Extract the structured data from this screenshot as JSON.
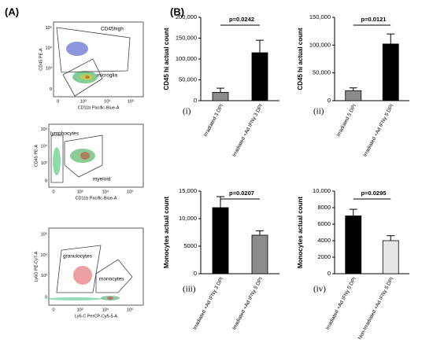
{
  "panel_a": {
    "label": "(A)",
    "plots": [
      {
        "ylabel": "CD45 PE-A",
        "xlabel": "CD11b Pacific-Blue-A",
        "xticks": [
          "0",
          "10³",
          "10⁴",
          "10⁵"
        ],
        "yticks": [
          "10⁵",
          "10⁴",
          "10³",
          "0"
        ],
        "gates": [
          "CD45high",
          "microglia"
        ]
      },
      {
        "ylabel": "CD45 PE-A",
        "xlabel": "CD11b Pacific-Blue-A",
        "xticks": [
          "0",
          "10³",
          "10⁴",
          "10⁵"
        ],
        "yticks": [
          "10⁵",
          "10⁴",
          "10³",
          "0"
        ],
        "gates": [
          "lymphocytes",
          "myeloid"
        ]
      },
      {
        "ylabel": "Ly6G PE-Cy7-A",
        "xlabel": "Ly6-C PerCP-Cy5-5-A",
        "xticks": [
          "0",
          "10³",
          "10⁴",
          "10⁵"
        ],
        "yticks": [
          "10⁵",
          "10⁴",
          "10³",
          "0"
        ],
        "gates": [
          "granulocytes",
          "monocytes"
        ]
      }
    ]
  },
  "panel_b_label": "(B)",
  "chart_data": [
    {
      "type": "bar",
      "panel": "(i)",
      "ylabel": "CD45 hi actual count",
      "annotation": "p=0.0242",
      "categories": [
        "Irradiated 3 DPI",
        "Irradiated +Ad IFNγ 3 DPI"
      ],
      "values": [
        20000,
        115000
      ],
      "errors": [
        10000,
        30000
      ],
      "colors": [
        "#8c8c8c",
        "#000000"
      ],
      "ylim": [
        0,
        200000
      ],
      "yticks": [
        0,
        {
          "value": 50000,
          "label": "50,000"
        },
        {
          "value": 100000,
          "label": "100,000"
        },
        {
          "value": 150000,
          "label": "150,000"
        },
        {
          "value": 200000,
          "label": "200,000"
        }
      ]
    },
    {
      "type": "bar",
      "panel": "(ii)",
      "ylabel": "CD45 hi actual count",
      "annotation": "p=0.0121",
      "categories": [
        "Irradiated 5 DPI",
        "Irradiated +Ad IFNγ 5 DPI"
      ],
      "values": [
        18000,
        102000
      ],
      "errors": [
        5000,
        18000
      ],
      "colors": [
        "#8c8c8c",
        "#000000"
      ],
      "ylim": [
        0,
        150000
      ],
      "yticks": [
        0,
        {
          "value": 50000,
          "label": "50,000"
        },
        {
          "value": 100000,
          "label": "100,000"
        },
        {
          "value": 150000,
          "label": "150,000"
        }
      ]
    },
    {
      "type": "bar",
      "panel": "(iii)",
      "ylabel": "Monocytes actual count",
      "annotation": "p=0.0207",
      "categories": [
        "Irradiated +Ad IFNγ 3 DPI",
        "Irradiated +Ad IFNγ 5 DPI"
      ],
      "values": [
        12000,
        7000
      ],
      "errors": [
        2000,
        800
      ],
      "colors": [
        "#000000",
        "#8c8c8c"
      ],
      "ylim": [
        0,
        15000
      ],
      "yticks": [
        0,
        5000,
        {
          "value": 10000,
          "label": "10,000"
        },
        {
          "value": 15000,
          "label": "15,000"
        }
      ]
    },
    {
      "type": "bar",
      "panel": "(iv)",
      "ylabel": "Monocytes actual count",
      "annotation": "p=0.0295",
      "categories": [
        "Irradiated +Ad IFNγ 5 DPI",
        "Non-Irradiated +Ad IFNγ 5 DPI"
      ],
      "values": [
        7000,
        4000
      ],
      "errors": [
        800,
        600
      ],
      "colors": [
        "#000000",
        "#e6e6e6"
      ],
      "ylim": [
        0,
        10000
      ],
      "yticks": [
        0,
        2000,
        4000,
        6000,
        8000,
        {
          "value": 10000,
          "label": "10,000"
        }
      ]
    }
  ]
}
